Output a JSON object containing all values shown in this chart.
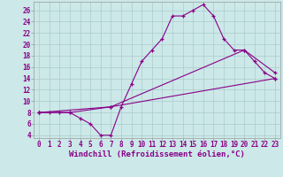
{
  "bg_color": "#cce8e8",
  "line_color": "#880088",
  "marker": "+",
  "xlabel": "Windchill (Refroidissement éolien,°C)",
  "xlabel_fontsize": 6.5,
  "xtick_fontsize": 5.5,
  "ytick_fontsize": 5.5,
  "ylim": [
    3.5,
    27.5
  ],
  "xlim": [
    -0.5,
    23.5
  ],
  "yticks": [
    4,
    6,
    8,
    10,
    12,
    14,
    16,
    18,
    20,
    22,
    24,
    26
  ],
  "xticks": [
    0,
    1,
    2,
    3,
    4,
    5,
    6,
    7,
    8,
    9,
    10,
    11,
    12,
    13,
    14,
    15,
    16,
    17,
    18,
    19,
    20,
    21,
    22,
    23
  ],
  "series": [
    {
      "x": [
        0,
        1,
        2,
        3,
        4,
        5,
        6,
        7,
        8,
        9,
        10,
        11,
        12,
        13,
        14,
        15,
        16,
        17,
        18,
        19,
        20,
        21,
        22,
        23
      ],
      "y": [
        8,
        8,
        8,
        8,
        7,
        6,
        4,
        4,
        9,
        13,
        17,
        19,
        21,
        25,
        25,
        26,
        27,
        25,
        21,
        19,
        19,
        17,
        15,
        14
      ]
    },
    {
      "x": [
        0,
        3,
        7,
        23
      ],
      "y": [
        8,
        8,
        9,
        14
      ]
    },
    {
      "x": [
        0,
        7,
        20,
        23
      ],
      "y": [
        8,
        9,
        19,
        15
      ]
    }
  ]
}
